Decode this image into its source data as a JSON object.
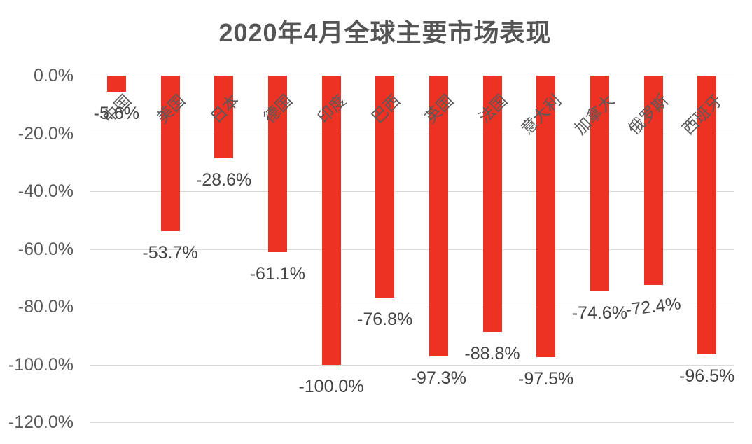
{
  "chart_data": {
    "type": "bar",
    "title": "2020年4月全球主要市场表现",
    "categories": [
      "中国",
      "美国",
      "日本",
      "德国",
      "印度",
      "巴西",
      "英国",
      "法国",
      "意大利",
      "加拿大",
      "俄罗斯",
      "西班牙"
    ],
    "values": [
      -5.6,
      -53.7,
      -28.6,
      -61.1,
      -100.0,
      -76.8,
      -97.3,
      -88.8,
      -97.5,
      -74.6,
      -72.4,
      -96.5
    ],
    "data_labels": [
      "-5.6%",
      "-53.7%",
      "-28.6%",
      "-61.1%",
      "-100.0%",
      "-76.8%",
      "-97.3%",
      "-88.8%",
      "-97.5%",
      "-74.6%",
      "-72.4%",
      "-96.5%"
    ],
    "data_label_tilts": [
      0,
      0,
      0,
      0,
      0,
      0,
      0,
      0,
      0,
      0,
      -7,
      0
    ],
    "y_axis": {
      "tick_labels": [
        "0.0%",
        "-20.0%",
        "-40.0%",
        "-60.0%",
        "-80.0%",
        "-100.0%",
        "-120.0%"
      ],
      "max": 0,
      "min": -120,
      "step": 20
    },
    "xlabel": "",
    "ylabel": "",
    "grid": true,
    "legend": false,
    "category_label_rotation": -45,
    "colors": {
      "bar": "#ED3224",
      "axis_label": "#595959",
      "category_label": "#595959",
      "data_label": "#444444",
      "title": "#555555",
      "gridline": "#D9D9D9",
      "background": "#FFFFFF"
    }
  }
}
